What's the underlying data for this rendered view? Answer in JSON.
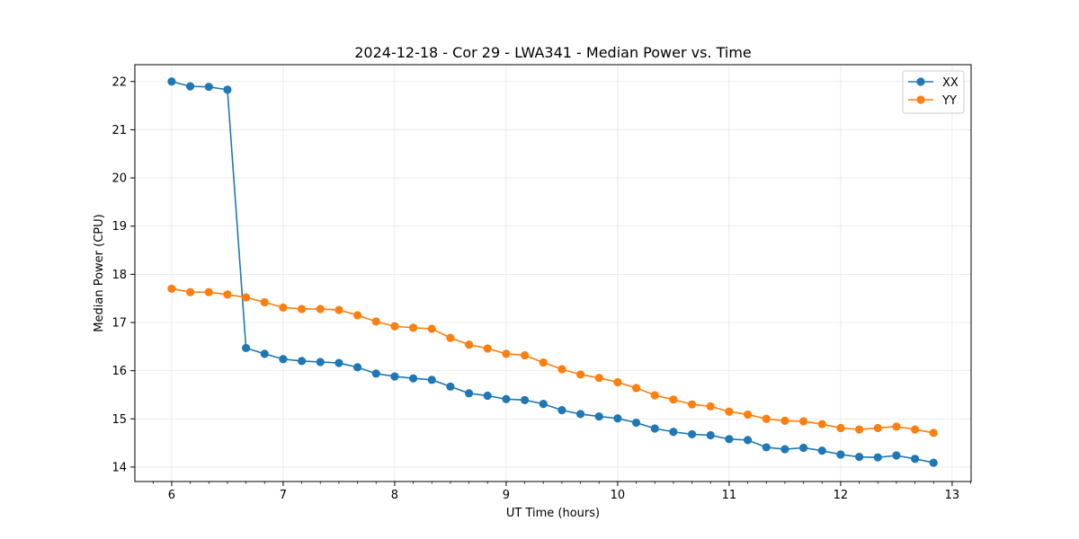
{
  "chart_data": {
    "type": "line",
    "title": "2024-12-18 - Cor 29 - LWA341 - Median Power vs. Time",
    "xlabel": "UT Time (hours)",
    "ylabel": "Median Power (CPU)",
    "xlim": [
      5.67,
      13.17
    ],
    "ylim": [
      13.7,
      22.35
    ],
    "xticks": [
      6,
      7,
      8,
      9,
      10,
      11,
      12,
      13
    ],
    "xtick_labels": [
      "6",
      "7",
      "8",
      "9",
      "10",
      "11",
      "12",
      "13"
    ],
    "yticks": [
      14,
      15,
      16,
      17,
      18,
      19,
      20,
      21,
      22
    ],
    "ytick_labels": [
      "14",
      "15",
      "16",
      "17",
      "18",
      "19",
      "20",
      "21",
      "22"
    ],
    "grid": true,
    "legend_position": "top-right",
    "x": [
      6.0,
      6.1667,
      6.3333,
      6.5,
      6.6667,
      6.8333,
      7.0,
      7.1667,
      7.3333,
      7.5,
      7.6667,
      7.8333,
      8.0,
      8.1667,
      8.3333,
      8.5,
      8.6667,
      8.8333,
      9.0,
      9.1667,
      9.3333,
      9.5,
      9.6667,
      9.8333,
      10.0,
      10.1667,
      10.3333,
      10.5,
      10.6667,
      10.8333,
      11.0,
      11.1667,
      11.3333,
      11.5,
      11.6667,
      11.8333,
      12.0,
      12.1667,
      12.3333,
      12.5,
      12.6667,
      12.8333
    ],
    "series": [
      {
        "name": "XX",
        "color": "#1f77b4",
        "values": [
          22.0,
          21.9,
          21.89,
          21.83,
          16.47,
          16.35,
          16.24,
          16.2,
          16.18,
          16.16,
          16.07,
          15.94,
          15.88,
          15.84,
          15.81,
          15.67,
          15.53,
          15.48,
          15.41,
          15.39,
          15.31,
          15.18,
          15.1,
          15.05,
          15.01,
          14.92,
          14.8,
          14.73,
          14.68,
          14.66,
          14.58,
          14.56,
          14.41,
          14.37,
          14.4,
          14.34,
          14.26,
          14.21,
          14.2,
          14.24,
          14.17,
          14.09
        ]
      },
      {
        "name": "YY",
        "color": "#ff7f0e",
        "values": [
          17.7,
          17.63,
          17.63,
          17.58,
          17.52,
          17.42,
          17.31,
          17.28,
          17.28,
          17.26,
          17.15,
          17.02,
          16.92,
          16.89,
          16.87,
          16.68,
          16.54,
          16.46,
          16.35,
          16.32,
          16.17,
          16.03,
          15.92,
          15.85,
          15.76,
          15.64,
          15.49,
          15.4,
          15.3,
          15.26,
          15.15,
          15.09,
          15.0,
          14.96,
          14.95,
          14.89,
          14.81,
          14.78,
          14.81,
          14.84,
          14.78,
          14.71
        ]
      }
    ]
  }
}
